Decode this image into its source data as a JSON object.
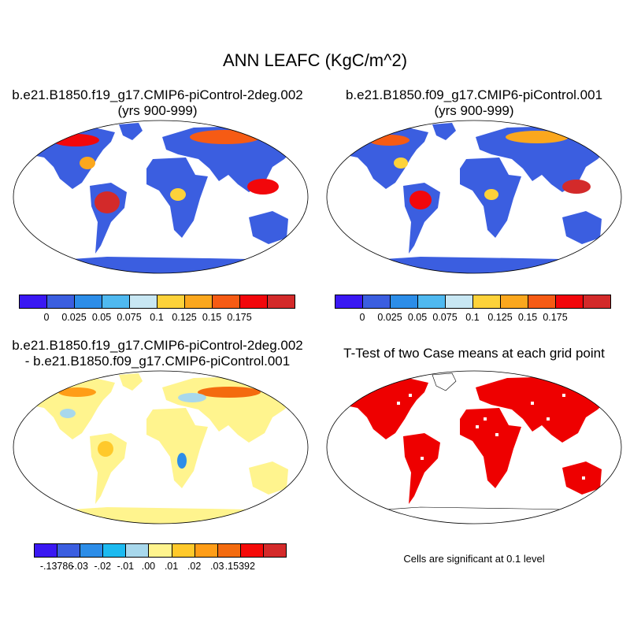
{
  "title": "ANN LEAFC (KgC/m^2)",
  "panels": [
    {
      "id": "case1",
      "title_lines": [
        "b.e21.B1850.f19_g17.CMIP6-piControl-2deg.002",
        "(yrs 900-999)"
      ]
    },
    {
      "id": "case2",
      "title_lines": [
        "b.e21.B1850.f09_g17.CMIP6-piControl.001",
        "(yrs 900-999)"
      ]
    },
    {
      "id": "diff",
      "title_lines": [
        "b.e21.B1850.f19_g17.CMIP6-piControl-2deg.002",
        "- b.e21.B1850.f09_g17.CMIP6-piControl.001"
      ]
    },
    {
      "id": "ttest",
      "title_lines": [
        "T-Test of two Case means at each grid point"
      ]
    }
  ],
  "colorbar_top": {
    "colors": [
      "#3a18f3",
      "#3b5ee0",
      "#2c8de8",
      "#4fb9f0",
      "#c8e7f3",
      "#fdd23a",
      "#fba71d",
      "#f65b14",
      "#f2070b",
      "#d32a2a"
    ],
    "labels": [
      "0",
      "0.025",
      "0.05",
      "0.075",
      "0.1",
      "0.125",
      "0.15",
      "0.175"
    ]
  },
  "colorbar_diff": {
    "colors": [
      "#3a18f3",
      "#3b5ee0",
      "#2c8de8",
      "#1cbaf0",
      "#a8d8ec",
      "#fff48e",
      "#ffc92b",
      "#ff9d17",
      "#f46b0f",
      "#f50a08",
      "#d42a2a"
    ],
    "labels": [
      "-.13786",
      "-.03",
      "-.02",
      "-.01",
      ".00",
      ".01",
      ".02",
      ".03",
      ".15392"
    ]
  },
  "significance_note": "Cells are significant at 0.1 level",
  "significance_color": "#ee0000"
}
